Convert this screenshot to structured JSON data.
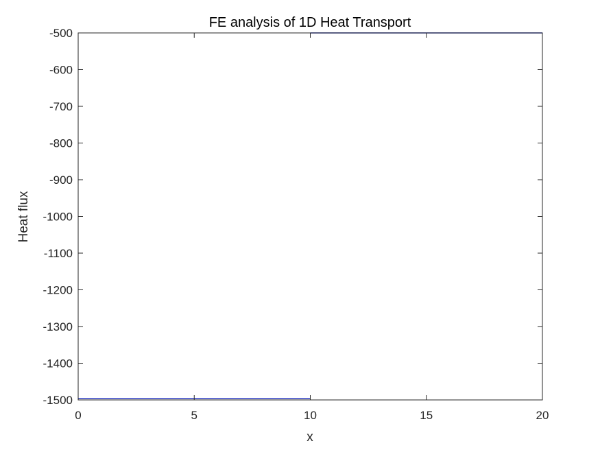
{
  "chart_data": {
    "type": "line",
    "title": "FE analysis of 1D Heat Transport",
    "xlabel": "x",
    "ylabel": "Heat flux",
    "xlim": [
      0,
      20
    ],
    "ylim": [
      -1500,
      -500
    ],
    "xticks": [
      0,
      5,
      10,
      15,
      20
    ],
    "yticks": [
      -500,
      -600,
      -700,
      -800,
      -900,
      -1000,
      -1100,
      -1200,
      -1300,
      -1400,
      -1500
    ],
    "grid": false,
    "series": [
      {
        "color": "#1f2fbf",
        "segments": [
          {
            "x": [
              0,
              10
            ],
            "y": [
              -1496,
              -1496
            ]
          },
          {
            "x": [
              10,
              20
            ],
            "y": [
              -500,
              -500
            ]
          }
        ]
      }
    ]
  }
}
